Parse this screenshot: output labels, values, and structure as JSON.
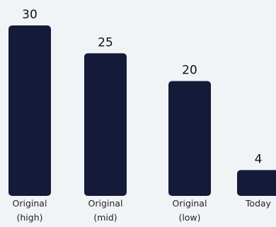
{
  "chart_data": {
    "type": "bar",
    "categories": [
      [
        "Original",
        "(high)"
      ],
      [
        "Original",
        "(mid)"
      ],
      [
        "Original",
        "(low)"
      ],
      [
        "Today"
      ]
    ],
    "values": [
      30,
      25,
      20,
      4
    ],
    "value_labels": [
      "30",
      "25",
      "20",
      "4"
    ],
    "title": "",
    "xlabel": "",
    "ylabel": "",
    "grid": false,
    "bar_color": "#151a38"
  },
  "colors": {
    "background": "#f1f4f6",
    "bar": "#151a38",
    "text": "#111111"
  }
}
